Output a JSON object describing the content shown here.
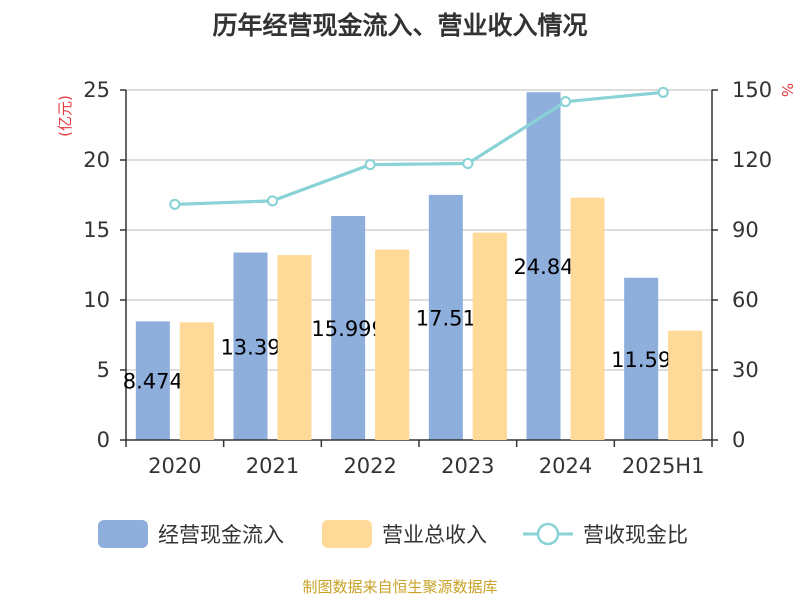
{
  "chart_data": {
    "type": "bar",
    "title": "历年经营现金流入、营业收入情况",
    "categories": [
      "2020",
      "2021",
      "2022",
      "2023",
      "2024",
      "2025H1"
    ],
    "y_left": {
      "unit_label": "(亿元)",
      "lim": [
        0,
        25
      ],
      "ticks": [
        0,
        5,
        10,
        15,
        20,
        25
      ]
    },
    "y_right": {
      "unit_label": "%",
      "lim": [
        0,
        150
      ],
      "ticks": [
        0,
        30,
        60,
        90,
        120,
        150
      ]
    },
    "series": [
      {
        "name": "经营现金流入",
        "type": "bar",
        "axis": "left",
        "color": "#8eaedb",
        "values": [
          8.474,
          13.39,
          15.999,
          17.51,
          24.84,
          11.59
        ],
        "labels": [
          "8.474",
          "13.39",
          "15.999",
          "17.51",
          "24.84",
          "11.59"
        ]
      },
      {
        "name": "营业总收入",
        "type": "bar",
        "axis": "left",
        "color": "#ffd998",
        "values": [
          8.4,
          13.2,
          13.6,
          14.8,
          17.3,
          7.8
        ]
      },
      {
        "name": "营收现金比",
        "type": "line",
        "axis": "right",
        "color": "#89d3d6",
        "values": [
          101,
          102.5,
          118,
          118.5,
          145,
          149
        ]
      }
    ],
    "legend_position": "bottom",
    "grid": true
  },
  "footer": {
    "source": "制图数据来自恒生聚源数据库",
    "source_color": "#c9a227"
  },
  "colors": {
    "axis_unit": "#e4393c"
  }
}
